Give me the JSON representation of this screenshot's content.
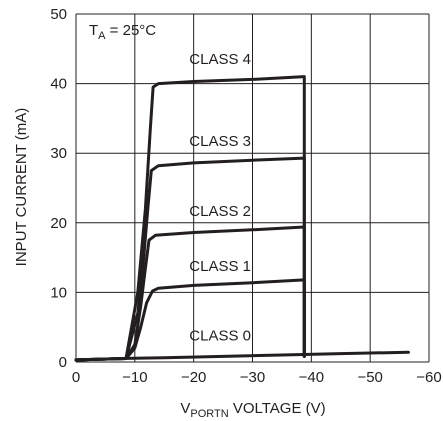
{
  "chart_data": {
    "type": "line",
    "title": "",
    "annotation": {
      "prefix": "T",
      "sub": "A",
      "suffix": " = 25°C"
    },
    "xlabel": {
      "prefix": "V",
      "sub": "PORTN",
      "suffix": " VOLTAGE (V)"
    },
    "ylabel": "INPUT CURRENT (mA)",
    "xlim": [
      0,
      -60
    ],
    "ylim": [
      0,
      50
    ],
    "xticks": [
      0,
      -10,
      -20,
      -30,
      -40,
      -50,
      -60
    ],
    "xtick_labels": [
      "0",
      "−10",
      "−20",
      "−30",
      "−40",
      "−50",
      "−60"
    ],
    "yticks": [
      0,
      10,
      20,
      30,
      40,
      50
    ],
    "ytick_labels": [
      "0",
      "10",
      "20",
      "30",
      "40",
      "50"
    ],
    "grid": true,
    "series": [
      {
        "name": "CLASS 0",
        "x": [
          0,
          -8,
          -15,
          -25,
          -35,
          -45,
          -56.5
        ],
        "y": [
          0.3,
          0.5,
          0.6,
          0.8,
          1.0,
          1.2,
          1.4
        ]
      },
      {
        "name": "CLASS 1",
        "x": [
          0,
          -8.5,
          -10,
          -11,
          -12,
          -13,
          -14,
          -20,
          -30,
          -38.8,
          -38.8
        ],
        "y": [
          0.3,
          0.5,
          2.0,
          5.0,
          8.5,
          10.2,
          10.6,
          11.0,
          11.4,
          11.8,
          0.8
        ]
      },
      {
        "name": "CLASS 2",
        "x": [
          0,
          -8.5,
          -10,
          -11,
          -11.8,
          -12.4,
          -13.5,
          -20,
          -30,
          -38.8,
          -38.8
        ],
        "y": [
          0.3,
          0.5,
          2.5,
          8.0,
          13.5,
          17.5,
          18.2,
          18.6,
          19.0,
          19.4,
          0.8
        ]
      },
      {
        "name": "CLASS 3",
        "x": [
          0,
          -8.5,
          -10.5,
          -11.5,
          -12.2,
          -12.8,
          -14,
          -20,
          -30,
          -38.8,
          -38.8
        ],
        "y": [
          0.3,
          0.5,
          7.0,
          15.0,
          22.0,
          27.5,
          28.2,
          28.6,
          29.0,
          29.3,
          0.8
        ]
      },
      {
        "name": "CLASS 4",
        "x": [
          0,
          -8.5,
          -10.5,
          -11.8,
          -12.6,
          -13.1,
          -14,
          -20,
          -30,
          -38.8,
          -38.8
        ],
        "y": [
          0.3,
          0.5,
          10.0,
          22.0,
          33.0,
          39.5,
          40.0,
          40.3,
          40.6,
          41.0,
          0.8
        ]
      }
    ],
    "curve_labels": [
      {
        "text": "CLASS 4",
        "x": -24.5,
        "y": 42.8
      },
      {
        "text": "CLASS 3",
        "x": -24.5,
        "y": 31.0
      },
      {
        "text": "CLASS 2",
        "x": -24.5,
        "y": 21.0
      },
      {
        "text": "CLASS 1",
        "x": -24.5,
        "y": 13.1
      },
      {
        "text": "CLASS 0",
        "x": -24.5,
        "y": 3.1
      }
    ]
  }
}
